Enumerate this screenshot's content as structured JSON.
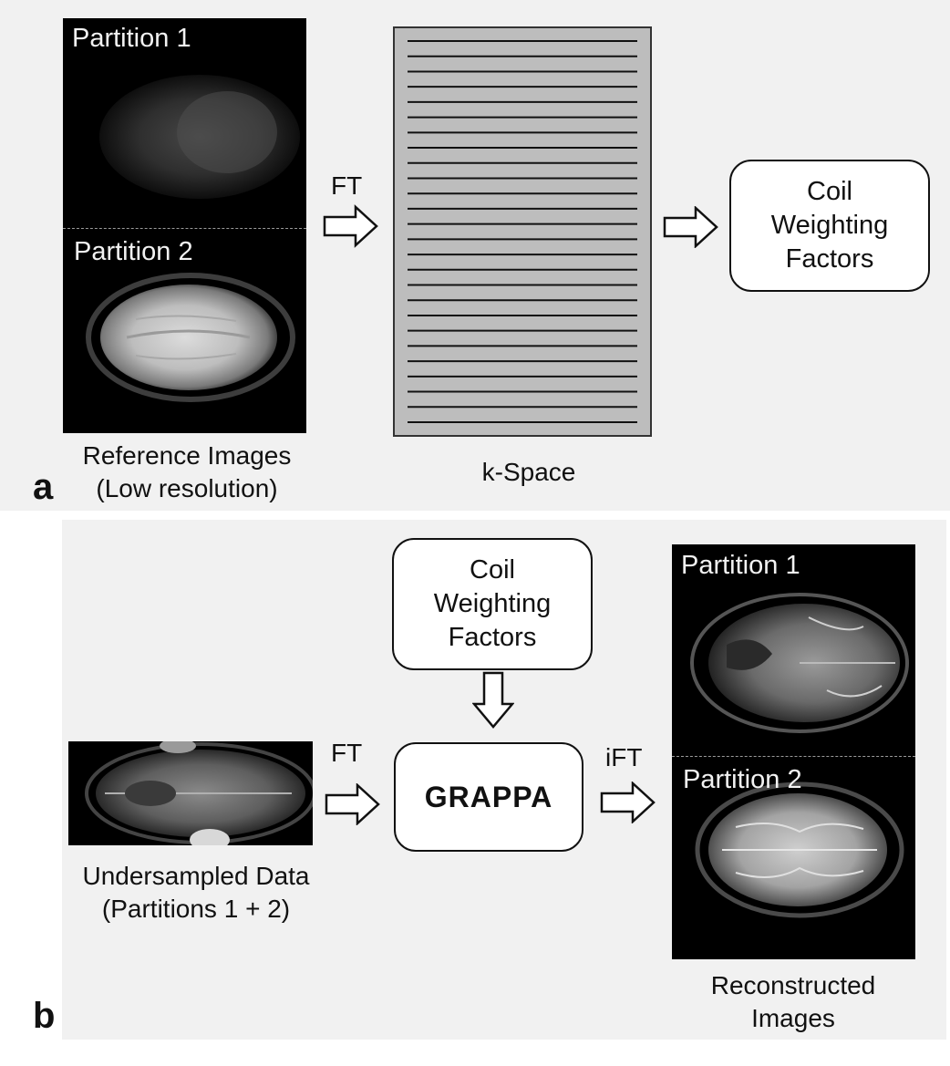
{
  "panel_a": {
    "letter": "a",
    "reference_partition_1": "Partition 1",
    "reference_partition_2": "Partition 2",
    "reference_caption_line1": "Reference Images",
    "reference_caption_line2": "(Low resolution)",
    "ft_label": "FT",
    "kspace_caption": "k-Space",
    "kspace_line_count": 26,
    "coil_box_text": "Coil\nWeighting\nFactors"
  },
  "panel_b": {
    "letter": "b",
    "coil_box_text": "Coil\nWeighting\nFactors",
    "ft_label": "FT",
    "ift_label": "iFT",
    "grappa_label": "GRAPPA",
    "undersampled_caption_line1": "Undersampled Data",
    "undersampled_caption_line2": "(Partitions 1 + 2)",
    "recon_partition_1": "Partition 1",
    "recon_partition_2": "Partition 2",
    "recon_caption_line1": "Reconstructed",
    "recon_caption_line2": "Images"
  },
  "colors": {
    "background_panel": "#f3f3f3",
    "kspace_fill": "#bdbdbd",
    "kspace_lines": "#111111",
    "scan_background": "#000000"
  }
}
